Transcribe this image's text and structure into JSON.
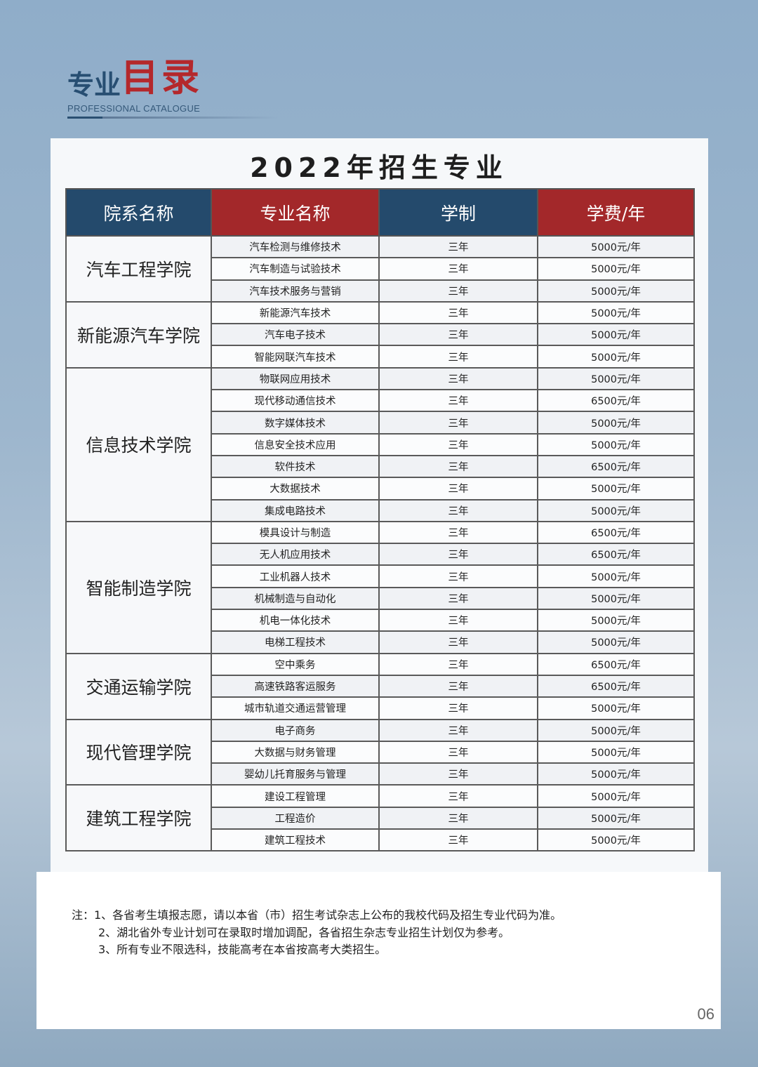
{
  "header": {
    "title_part1": "专业",
    "title_part2": "目录",
    "subtitle": "PROFESSIONAL CATALOGUE"
  },
  "table_title": "2022年招生专业",
  "columns": [
    "院系名称",
    "专业名称",
    "学制",
    "学费/年"
  ],
  "colors": {
    "header_blue": "#244a6c",
    "header_red": "#a3282a",
    "background": "#8fadc9"
  },
  "departments": [
    {
      "name": "汽车工程学院",
      "majors": [
        [
          "汽车检测与维修技术",
          "三年",
          "5000元/年"
        ],
        [
          "汽车制造与试验技术",
          "三年",
          "5000元/年"
        ],
        [
          "汽车技术服务与营销",
          "三年",
          "5000元/年"
        ]
      ]
    },
    {
      "name": "新能源汽车学院",
      "majors": [
        [
          "新能源汽车技术",
          "三年",
          "5000元/年"
        ],
        [
          "汽车电子技术",
          "三年",
          "5000元/年"
        ],
        [
          "智能网联汽车技术",
          "三年",
          "5000元/年"
        ]
      ]
    },
    {
      "name": "信息技术学院",
      "majors": [
        [
          "物联网应用技术",
          "三年",
          "5000元/年"
        ],
        [
          "现代移动通信技术",
          "三年",
          "6500元/年"
        ],
        [
          "数字媒体技术",
          "三年",
          "5000元/年"
        ],
        [
          "信息安全技术应用",
          "三年",
          "5000元/年"
        ],
        [
          "软件技术",
          "三年",
          "6500元/年"
        ],
        [
          "大数据技术",
          "三年",
          "5000元/年"
        ],
        [
          "集成电路技术",
          "三年",
          "5000元/年"
        ]
      ]
    },
    {
      "name": "智能制造学院",
      "majors": [
        [
          "模具设计与制造",
          "三年",
          "6500元/年"
        ],
        [
          "无人机应用技术",
          "三年",
          "6500元/年"
        ],
        [
          "工业机器人技术",
          "三年",
          "5000元/年"
        ],
        [
          "机械制造与自动化",
          "三年",
          "5000元/年"
        ],
        [
          "机电一体化技术",
          "三年",
          "5000元/年"
        ],
        [
          "电梯工程技术",
          "三年",
          "5000元/年"
        ]
      ]
    },
    {
      "name": "交通运输学院",
      "majors": [
        [
          "空中乘务",
          "三年",
          "6500元/年"
        ],
        [
          "高速铁路客运服务",
          "三年",
          "6500元/年"
        ],
        [
          "城市轨道交通运营管理",
          "三年",
          "5000元/年"
        ]
      ]
    },
    {
      "name": "现代管理学院",
      "majors": [
        [
          "电子商务",
          "三年",
          "5000元/年"
        ],
        [
          "大数据与财务管理",
          "三年",
          "5000元/年"
        ],
        [
          "婴幼儿托育服务与管理",
          "三年",
          "5000元/年"
        ]
      ]
    },
    {
      "name": "建筑工程学院",
      "majors": [
        [
          "建设工程管理",
          "三年",
          "5000元/年"
        ],
        [
          "工程造价",
          "三年",
          "5000元/年"
        ],
        [
          "建筑工程技术",
          "三年",
          "5000元/年"
        ]
      ]
    }
  ],
  "notes": [
    "注：1、各省考生填报志愿，请以本省（市）招生考试杂志上公布的我校代码及招生专业代码为准。",
    "2、湖北省外专业计划可在录取时增加调配，各省招生杂志专业招生计划仅为参考。",
    "3、所有专业不限选科，技能高考在本省按高考大类招生。"
  ],
  "page_number": "06"
}
